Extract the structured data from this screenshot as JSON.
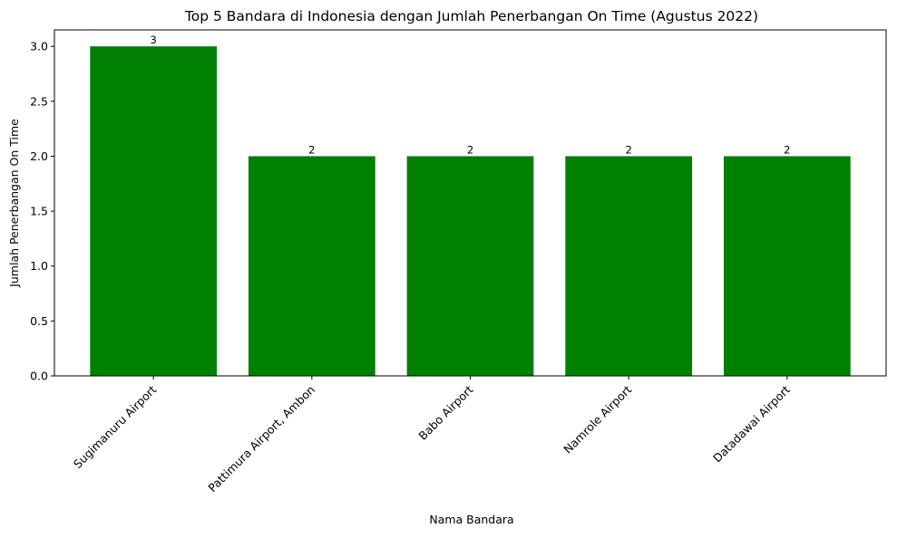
{
  "chart_data": {
    "type": "bar",
    "title": "Top 5 Bandara di Indonesia dengan Jumlah Penerbangan On Time (Agustus 2022)",
    "xlabel": "Nama Bandara",
    "ylabel": "Jumlah Penerbangan On Time",
    "categories": [
      "Sugimanuru Airport",
      "Pattimura Airport, Ambon",
      "Babo Airport",
      "Namrole Airport",
      "Datadawai Airport"
    ],
    "values": [
      3,
      2,
      2,
      2,
      2
    ],
    "data_labels": [
      "3",
      "2",
      "2",
      "2",
      "2"
    ],
    "ylim": [
      0,
      3.15
    ],
    "yticks": [
      0.0,
      0.5,
      1.0,
      1.5,
      2.0,
      2.5,
      3.0
    ],
    "ytick_labels": [
      "0.0",
      "0.5",
      "1.0",
      "1.5",
      "2.0",
      "2.5",
      "3.0"
    ],
    "bar_color": "#008000",
    "grid": false,
    "legend": "none"
  }
}
